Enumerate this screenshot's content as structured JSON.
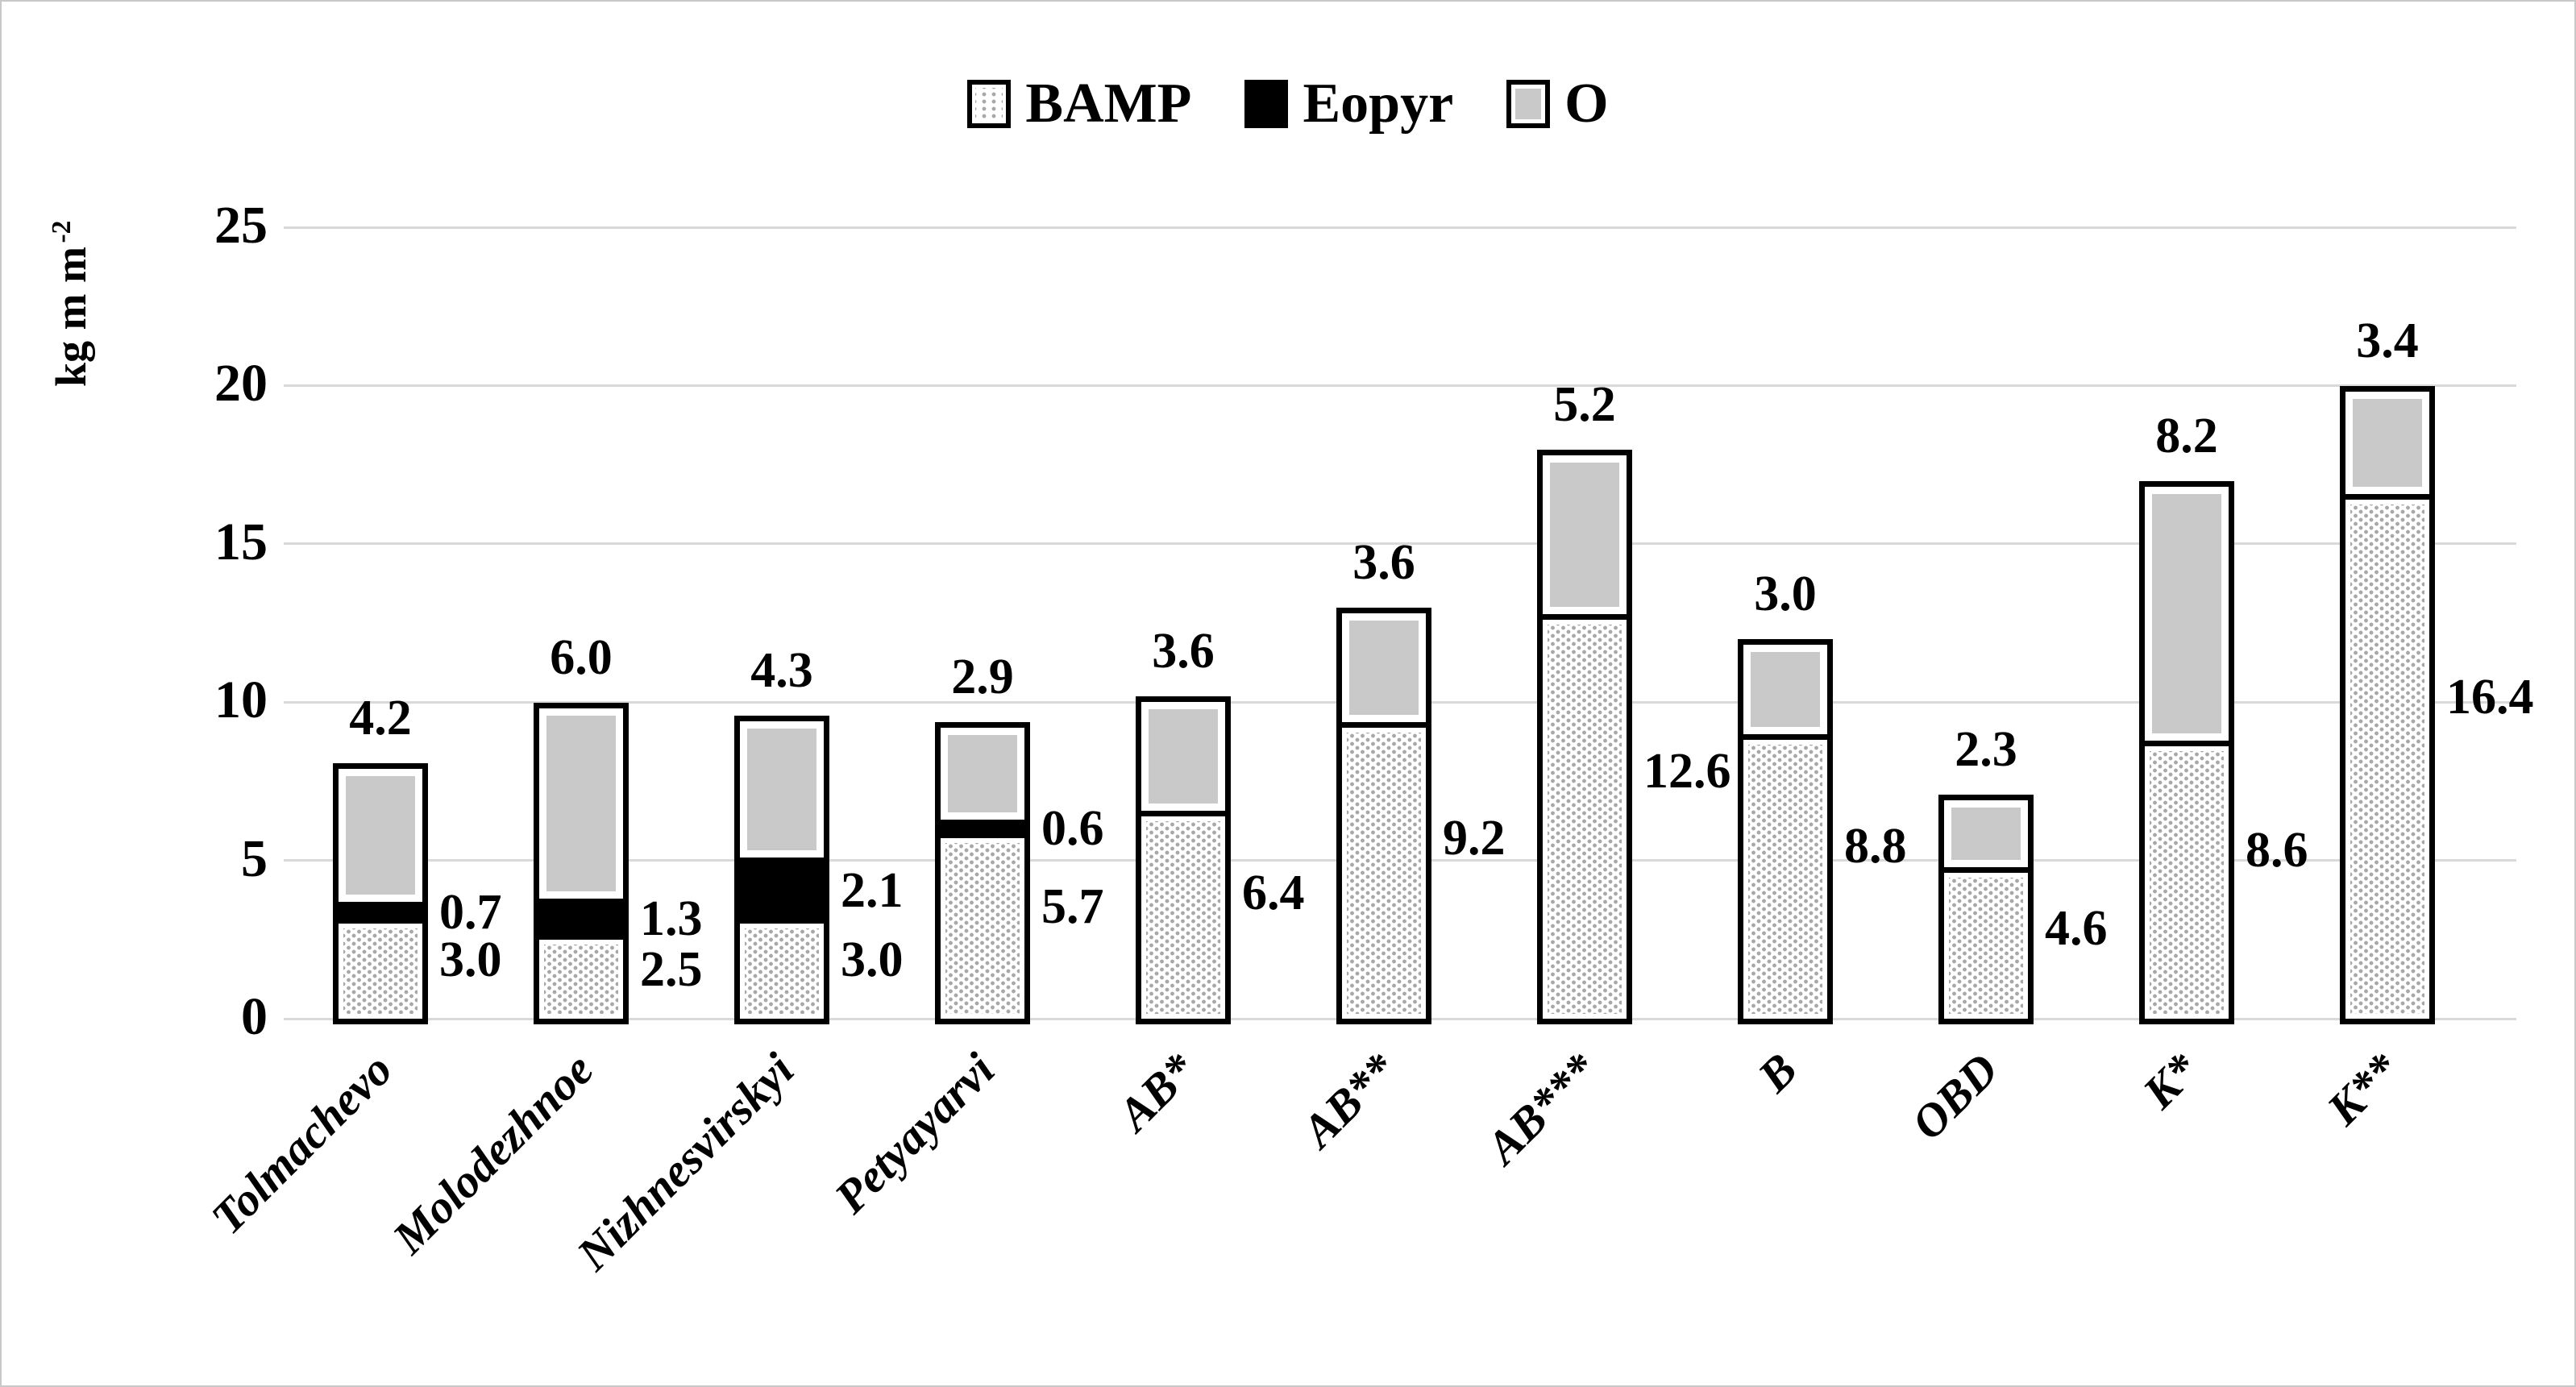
{
  "figure": {
    "ylabel_main": "kg m m",
    "ylabel_sup": "-2"
  },
  "legend": {
    "items": [
      {
        "label": "BAMP",
        "swatch": "bamp-dotted-swatch"
      },
      {
        "label": "Eopyr",
        "swatch": "eopyr-black-swatch"
      },
      {
        "label": "O",
        "swatch": "o-gray-swatch"
      }
    ]
  },
  "colors": {
    "o_fill": "#c9c9c9",
    "eopyr_fill": "#000000",
    "bamp_dot": "#a8a8a8",
    "grid": "#d9d9d9",
    "bar_border": "#000000",
    "frame": "#c8c8c8"
  },
  "chart_data": {
    "type": "bar",
    "stacked": true,
    "title": "",
    "ylabel": "kg m m⁻²",
    "ylim": [
      0,
      25
    ],
    "yticks": [
      0,
      5,
      10,
      15,
      20,
      25
    ],
    "grid": "horizontal",
    "legend_position": "top-center",
    "categories": [
      "Tolmachevo",
      "Molodezhnoe",
      "Nizhnesvirskyi",
      "Petyayarvi",
      "AB*",
      "AB**",
      "AB***",
      "B",
      "OBD",
      "K*",
      "K**"
    ],
    "series": [
      {
        "name": "BAMP",
        "values": [
          3.0,
          2.5,
          3.0,
          5.7,
          6.4,
          9.2,
          12.6,
          8.8,
          4.6,
          8.6,
          16.4
        ]
      },
      {
        "name": "Eopyr",
        "values": [
          0.7,
          1.3,
          2.1,
          0.6,
          0,
          0,
          0,
          0,
          0,
          0,
          0
        ]
      },
      {
        "name": "O",
        "values": [
          4.2,
          6.0,
          4.3,
          2.9,
          3.6,
          3.6,
          5.2,
          3.0,
          2.3,
          8.2,
          3.4
        ]
      }
    ],
    "data_labels": {
      "BAMP": [
        "3.0",
        "2.5",
        "3.0",
        "5.7",
        "6.4",
        "9.2",
        "12.6",
        "8.8",
        "4.6",
        "8.6",
        "16.4"
      ],
      "Eopyr": [
        "0.7",
        "1.3",
        "2.1",
        "0.6",
        "",
        "",
        "",
        "",
        "",
        "",
        ""
      ],
      "O": [
        "4.2",
        "6.0",
        "4.3",
        "2.9",
        "3.6",
        "3.6",
        "5.2",
        "3.0",
        "2.3",
        "8.2",
        "3.4"
      ]
    }
  }
}
